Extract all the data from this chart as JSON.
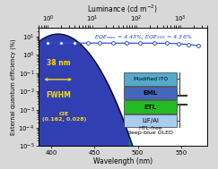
{
  "xlabel_bottom": "Wavelength (nm)",
  "xlabel_top": "Luminance (cd m$^{-2}$)",
  "ylabel": "External quantum efficiency (%)",
  "eqe_label": "EQE$_{max}$ = 4.43%, EQE$_{250}$ = 4.36%",
  "fwhm_label": "38 nm",
  "fwhm_text": "FWHM",
  "cie_label": "CIE\n(0.162, 0.028)",
  "wavelength_min": 385,
  "wavelength_max": 580,
  "ylim_min": 1e-05,
  "ylim_max": 30,
  "spectrum_peak_wl": 408,
  "spectrum_peak_val": 14.0,
  "spectrum_fwhm": 38,
  "lum_data": [
    1.0,
    2.0,
    4.0,
    8.0,
    15.0,
    30.0,
    60.0,
    120.0,
    250.0,
    500.0,
    900.0,
    1500.0,
    2500.0
  ],
  "eqe_data": [
    4.43,
    4.43,
    4.42,
    4.41,
    4.4,
    4.39,
    4.38,
    4.37,
    4.36,
    4.28,
    4.1,
    3.75,
    3.2
  ],
  "lum_xlim_min": 0.6,
  "lum_xlim_max": 4000,
  "layer_labels": [
    "LiF/Al",
    "ETL",
    "EML",
    "Modified ITO"
  ],
  "layer_colors": [
    "#aaccee",
    "#22bb22",
    "#4466bb",
    "#55aacc"
  ],
  "layer_edge": "#333333",
  "circuit_color": "#333333",
  "htl_label": "HTL-free\ndeep-blue OLED",
  "arrow_color": "#ffdd00",
  "text_yellow": "#ffdd00",
  "text_blue": "#2244bb",
  "bg_color": "#d8d8d8",
  "eqe_line_color": "#3355cc",
  "eqe_marker_face": "#ffffff",
  "eqe_marker_edge": "#3355cc"
}
